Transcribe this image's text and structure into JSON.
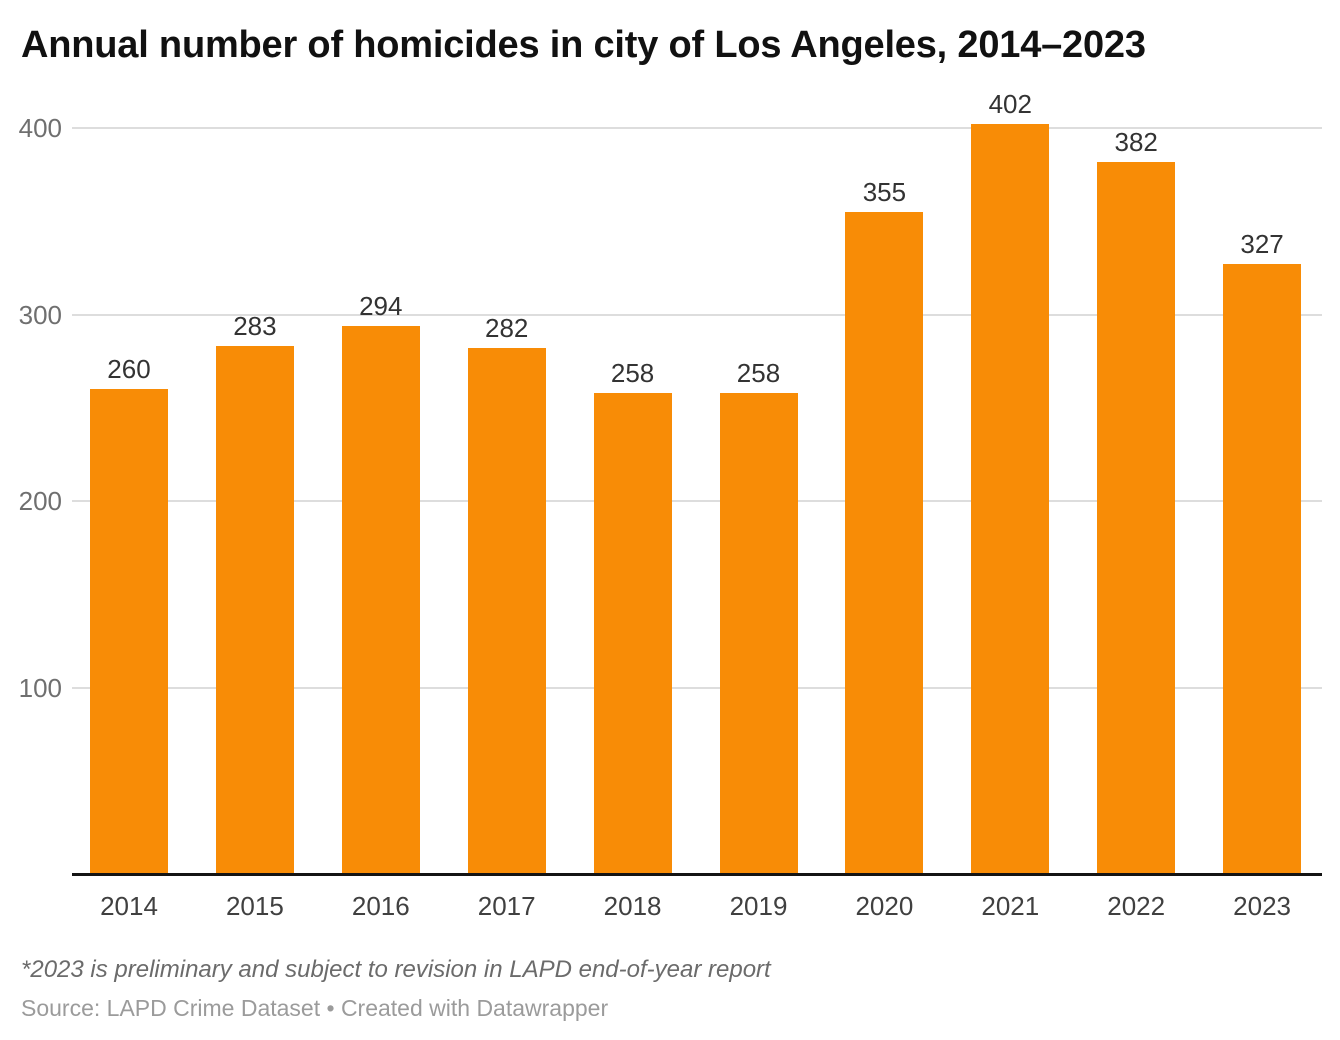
{
  "chart_data": {
    "type": "bar",
    "title": "Annual number of homicides in city of Los Angeles, 2014–2023",
    "categories": [
      "2014",
      "2015",
      "2016",
      "2017",
      "2018",
      "2019",
      "2020",
      "2021",
      "2022",
      "2023"
    ],
    "values": [
      260,
      283,
      294,
      282,
      258,
      258,
      355,
      402,
      382,
      327
    ],
    "xlabel": "",
    "ylabel": "",
    "yticks": [
      100,
      200,
      300,
      400
    ],
    "ylim": [
      0,
      420
    ],
    "grid": true,
    "legend_position": "none",
    "value_labels": true
  },
  "footnote": "*2023 is preliminary and subject to revision in LAPD end-of-year report",
  "source_line": "Source: LAPD Crime Dataset • Created with Datawrapper",
  "colors": {
    "bar": "#f88c06",
    "grid": "#dddddd",
    "axis_line": "#141414",
    "title_text": "#111111",
    "value_label": "#333333",
    "x_label": "#404040",
    "y_label": "#6f6f6f",
    "footnote_text": "#6b6b6b",
    "source_text": "#9b9b9b"
  }
}
